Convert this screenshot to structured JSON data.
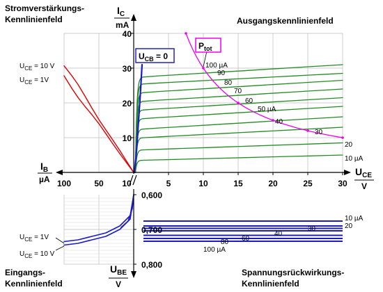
{
  "titles": {
    "q2_line1": "Stromverstärkungs-",
    "q2_line2": "Kennlinienfeld",
    "q1": "Ausgangskennlinienfeld",
    "q3_line1": "Eingangs-",
    "q3_line2": "Kennlinienfeld",
    "q4_line1": "Spannungsrückwirkungs-",
    "q4_line2": "Kennlinienfeld"
  },
  "axes": {
    "ic_label": "I",
    "ic_sub": "C",
    "ic_unit": "mA",
    "ib_label": "I",
    "ib_sub": "B",
    "ib_unit": "µA",
    "uce_label": "U",
    "uce_sub": "CE",
    "uce_unit": "V",
    "ube_label": "U",
    "ube_sub": "BE",
    "ube_unit": "V"
  },
  "annotations": {
    "ucb0_main": "U",
    "ucb0_sub": "CB",
    "ucb0_rest": " = 0",
    "ptot_main": "P",
    "ptot_sub": "tot",
    "q2_uce10_main": "U",
    "q2_uce10_sub": "CE",
    "q2_uce10_rest": " = 10 V",
    "q2_uce1_main": "U",
    "q2_uce1_sub": "CE",
    "q2_uce1_rest": " = 1V",
    "q3_uce1_main": "U",
    "q3_uce1_sub": "CE",
    "q3_uce1_rest": " = 1V",
    "q3_uce10_main": "U",
    "q3_uce10_sub": "CE",
    "q3_uce10_rest": " = 10 V"
  },
  "colors": {
    "output_curves": "#228B22",
    "transfer_curves": "#DD0000",
    "input_curves": "#1a1acc",
    "feedback_curves": "#1a1acc",
    "ptot_curve": "#EE00EE",
    "grid": "#bbbbbb"
  },
  "chart_data": [
    {
      "type": "line",
      "quadrant": "output",
      "title": "Ausgangskennlinienfeld",
      "xlim": [
        0,
        30
      ],
      "ylim": [
        0,
        40
      ],
      "x_ticks": [
        "5",
        "10",
        "15",
        "20",
        "25",
        "30"
      ],
      "y_ticks": [
        "10",
        "20",
        "30",
        "40"
      ],
      "series_labels": [
        "100 µA",
        "90",
        "80",
        "70",
        "60",
        "50 µA",
        "40",
        "30",
        "20",
        "10 µA"
      ],
      "series": [
        {
          "ib_uA": 100,
          "ic_start": 27.5,
          "ic_end": 31
        },
        {
          "ib_uA": 90,
          "ic_start": 25.5,
          "ic_end": 28.5
        },
        {
          "ib_uA": 80,
          "ic_start": 23,
          "ic_end": 26.5
        },
        {
          "ib_uA": 70,
          "ic_start": 20.5,
          "ic_end": 24
        },
        {
          "ib_uA": 60,
          "ic_start": 18,
          "ic_end": 21.5
        },
        {
          "ib_uA": 50,
          "ic_start": 15.5,
          "ic_end": 19
        },
        {
          "ib_uA": 40,
          "ic_start": 12.5,
          "ic_end": 16
        },
        {
          "ib_uA": 30,
          "ic_start": 10,
          "ic_end": 13
        },
        {
          "ib_uA": 20,
          "ic_start": 6.5,
          "ic_end": 8.5
        },
        {
          "ib_uA": 10,
          "ic_start": 3.5,
          "ic_end": 5
        }
      ],
      "ptot_curve": {
        "uce": [
          7.5,
          10,
          13,
          16,
          20,
          25,
          30
        ],
        "ic": [
          40,
          30,
          23,
          18.75,
          15,
          12,
          10
        ]
      },
      "ucb0_curve": {
        "uce": [
          0,
          0.3,
          0.6,
          0.9,
          1.1
        ],
        "ic": [
          0,
          6,
          15,
          24,
          31
        ]
      }
    },
    {
      "type": "line",
      "quadrant": "current-gain",
      "title": "Stromverstärkungs-Kennlinienfeld",
      "xlim": [
        100,
        0
      ],
      "ylim": [
        0,
        40
      ],
      "x_ticks": [
        "100",
        "50",
        "10"
      ],
      "series": [
        {
          "uce_V": 10,
          "ib_uA": [
            0,
            100
          ],
          "ic_mA": [
            0,
            31
          ]
        },
        {
          "uce_V": 1,
          "ib_uA": [
            0,
            100
          ],
          "ic_mA": [
            0,
            27.5
          ]
        }
      ]
    },
    {
      "type": "line",
      "quadrant": "input",
      "title": "Eingangs-Kennlinienfeld",
      "xlim": [
        100,
        0
      ],
      "ylim": [
        0.6,
        0.8
      ],
      "y_ticks": [
        "0,600",
        "0,700",
        "0,800"
      ],
      "series": [
        {
          "uce_V": 1,
          "ib_uA": [
            0,
            5,
            20,
            40,
            60,
            80,
            100
          ],
          "ube_V": [
            0.6,
            0.66,
            0.69,
            0.71,
            0.72,
            0.73,
            0.735
          ]
        },
        {
          "uce_V": 10,
          "ib_uA": [
            0,
            5,
            20,
            40,
            60,
            80,
            100
          ],
          "ube_V": [
            0.6,
            0.67,
            0.7,
            0.72,
            0.73,
            0.74,
            0.745
          ]
        }
      ]
    },
    {
      "type": "line",
      "quadrant": "feedback",
      "title": "Spannungsrückwirkungs-Kennlinienfeld",
      "xlim": [
        0,
        30
      ],
      "ylim": [
        0.6,
        0.8
      ],
      "series_labels": [
        "10 µA",
        "20",
        "30",
        "40",
        "60",
        "80",
        "100 µA"
      ],
      "series": [
        {
          "ib_uA": 10,
          "ube_V": 0.676
        },
        {
          "ib_uA": 20,
          "ube_V": 0.69
        },
        {
          "ib_uA": 30,
          "ube_V": 0.697
        },
        {
          "ib_uA": 40,
          "ube_V": 0.704
        },
        {
          "ib_uA": 60,
          "ube_V": 0.717
        },
        {
          "ib_uA": 80,
          "ube_V": 0.726
        },
        {
          "ib_uA": 100,
          "ube_V": 0.734
        }
      ]
    }
  ]
}
